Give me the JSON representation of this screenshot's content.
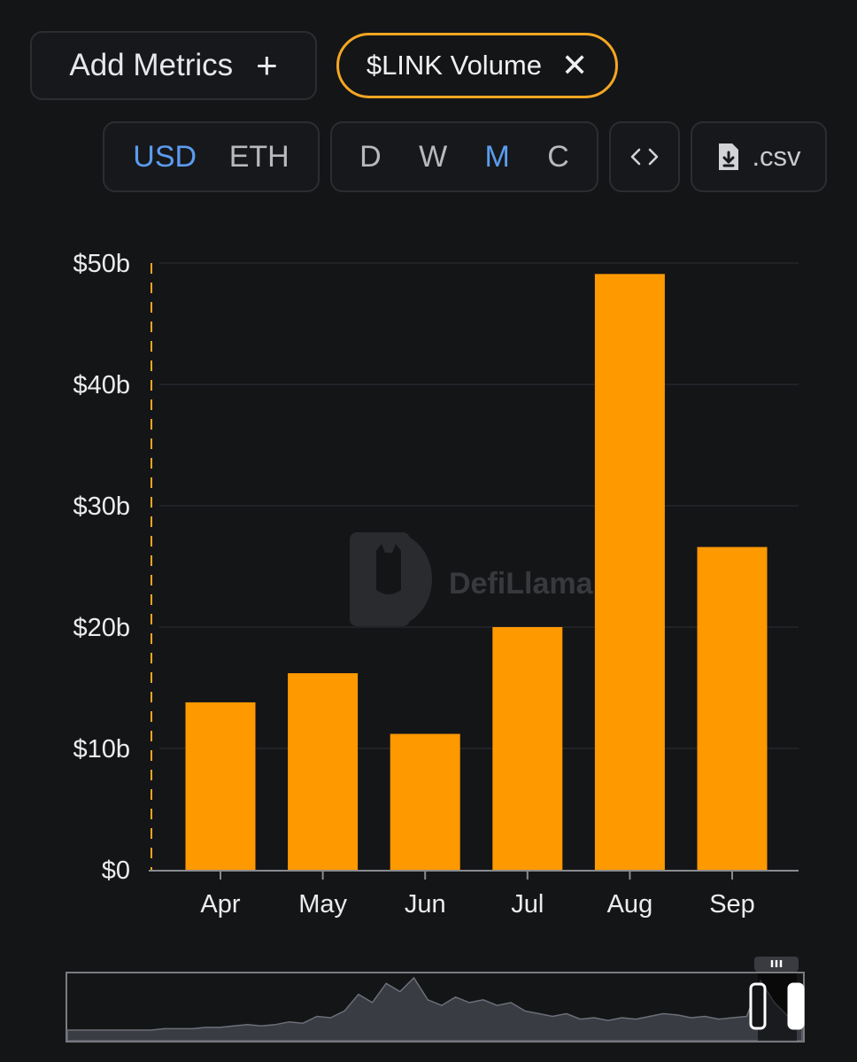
{
  "toolbar": {
    "add_metrics_label": "Add Metrics",
    "add_metrics_icon": "plus-icon",
    "metric_chip_label": "$LINK Volume",
    "metric_chip_icon": "close-icon",
    "currency_options": [
      "USD",
      "ETH"
    ],
    "currency_selected": "USD",
    "period_options": [
      "D",
      "W",
      "M",
      "C"
    ],
    "period_selected": "M",
    "embed_icon": "code-icon",
    "csv_label": ".csv",
    "csv_icon": "file-download-icon"
  },
  "watermark": "DefiLlama",
  "colors": {
    "background": "#141517",
    "bar": "#ff9900",
    "accent_selected": "#5b9cf0",
    "chip_border": "#f5a623"
  },
  "chart_data": {
    "type": "bar",
    "title": "",
    "xlabel": "",
    "ylabel": "",
    "categories": [
      "Apr",
      "May",
      "Jun",
      "Jul",
      "Aug",
      "Sep"
    ],
    "series": [
      {
        "values": [
          13.8,
          16.2,
          11.2,
          20.0,
          49.1,
          26.6
        ]
      }
    ],
    "unit": "billion USD",
    "ylim": [
      0,
      50
    ],
    "y_ticks": [
      0,
      10,
      20,
      30,
      40,
      50
    ],
    "y_tick_labels": [
      "$0",
      "$10b",
      "$20b",
      "$30b",
      "$40b",
      "$50b"
    ],
    "grid": true,
    "legend": "none"
  },
  "brush_series": [
    0,
    0,
    0,
    0,
    0,
    0,
    0,
    1,
    1,
    1,
    2,
    2,
    3,
    4,
    3,
    4,
    6,
    5,
    10,
    9,
    14,
    26,
    20,
    34,
    28,
    38,
    22,
    18,
    24,
    20,
    22,
    18,
    20,
    14,
    12,
    10,
    12,
    8,
    9,
    7,
    9,
    8,
    10,
    12,
    11,
    9,
    10,
    8,
    9,
    10,
    36,
    20,
    10,
    8
  ]
}
